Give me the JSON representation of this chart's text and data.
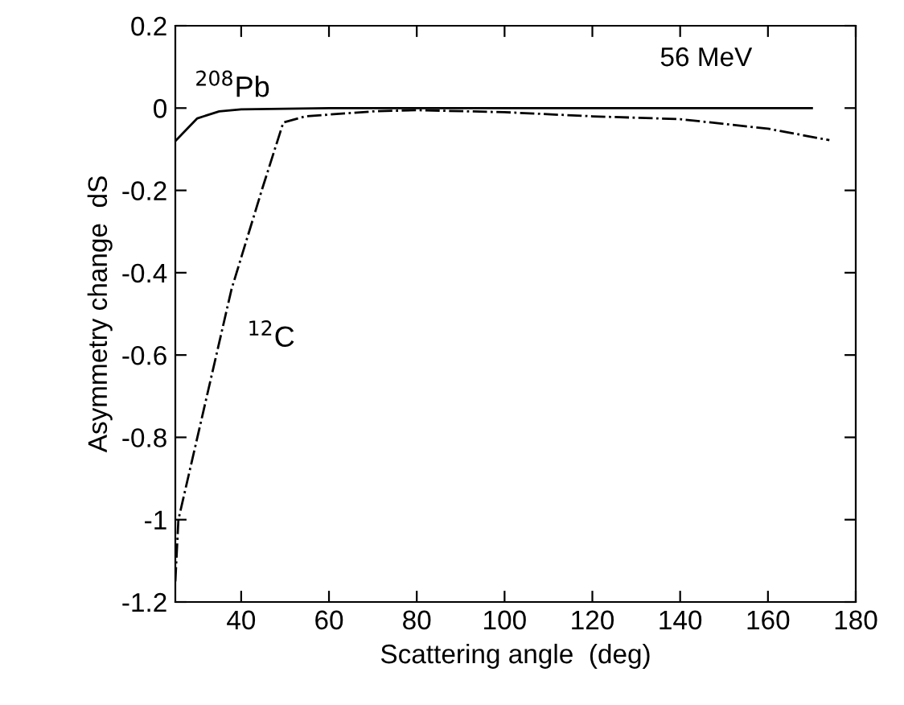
{
  "chart_data": {
    "type": "line",
    "xlabel": "Scattering angle  (deg)",
    "ylabel": "Asymmetry change  dS",
    "xlim": [
      25,
      180
    ],
    "xticks": [
      40,
      60,
      80,
      100,
      120,
      140,
      160,
      180
    ],
    "ylim": [
      -1.2,
      0.2
    ],
    "yticks": [
      -1.2,
      -1,
      -0.8,
      -0.6,
      -0.4,
      -0.2,
      0,
      0.2
    ],
    "series": [
      {
        "name": "$^{208}$Pb",
        "color": "#000000",
        "line_style": "solid",
        "x": [
          25,
          30,
          35,
          40,
          60,
          80,
          100,
          120,
          140,
          170
        ],
        "values": [
          -0.08,
          -0.025,
          -0.008,
          -0.003,
          0,
          0,
          0,
          0,
          0,
          0
        ]
      },
      {
        "name": "$^{12}$C",
        "color": "#000000",
        "line_style": "dashdot",
        "x": [
          25,
          25.7,
          37.8,
          44.8,
          49.6,
          54.7,
          70,
          80,
          100,
          120,
          140,
          160,
          174
        ],
        "values": [
          -1.15,
          -1,
          -0.44,
          -0.196,
          -0.035,
          -0.02,
          -0.008,
          -0.005,
          -0.01,
          -0.02,
          -0.027,
          -0.05,
          -0.078
        ]
      }
    ],
    "annotations": [
      "56 MeV"
    ],
    "grid": false
  }
}
